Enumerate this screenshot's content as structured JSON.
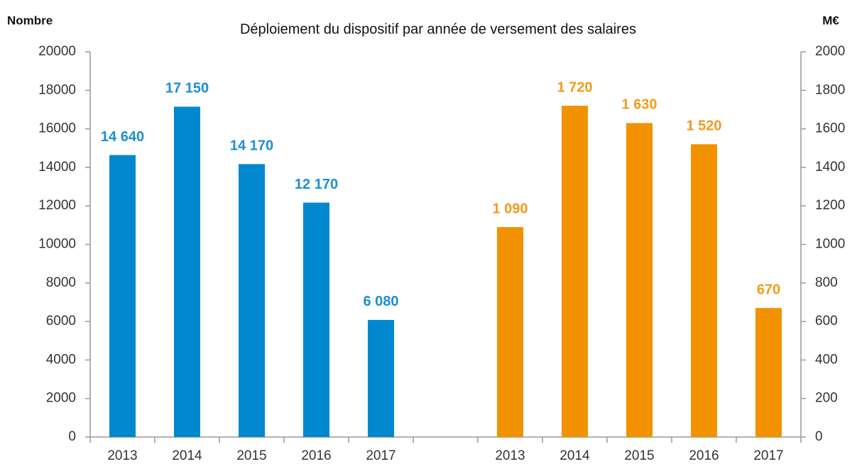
{
  "chart_data": {
    "type": "bar",
    "title": "Déploiement du dispositif par année de versement des salaires",
    "y_label": "Nombre",
    "y2_label": "M€",
    "categories": [
      "2013",
      "2014",
      "2015",
      "2016",
      "2017",
      null,
      "2013",
      "2014",
      "2015",
      "2016",
      "2017"
    ],
    "series": [
      {
        "color": "#0088cf",
        "label_color": "#1b8fd2",
        "values": [
          14640,
          17150,
          14170,
          12170,
          6080,
          null,
          null,
          null,
          null,
          null,
          null
        ],
        "value_labels": [
          "14 640",
          "17 150",
          "14 170",
          "12 170",
          "6 080",
          null,
          null,
          null,
          null,
          null,
          null
        ]
      },
      {
        "color": "#f39200",
        "label_color": "#f39a1a",
        "axis": "y2",
        "values": [
          null,
          null,
          null,
          null,
          null,
          null,
          1090,
          1720,
          1630,
          1520,
          670
        ],
        "value_labels": [
          null,
          null,
          null,
          null,
          null,
          null,
          "1 090",
          "1 720",
          "1 630",
          "1 520",
          "670"
        ]
      }
    ],
    "ylim": [
      0,
      20000
    ],
    "yticks": [
      0,
      2000,
      4000,
      6000,
      8000,
      10000,
      12000,
      14000,
      16000,
      18000,
      20000
    ],
    "y2lim": [
      0,
      2000
    ],
    "y2ticks": [
      0,
      200,
      400,
      600,
      800,
      1000,
      1200,
      1400,
      1600,
      1800,
      2000
    ],
    "grid": false
  }
}
